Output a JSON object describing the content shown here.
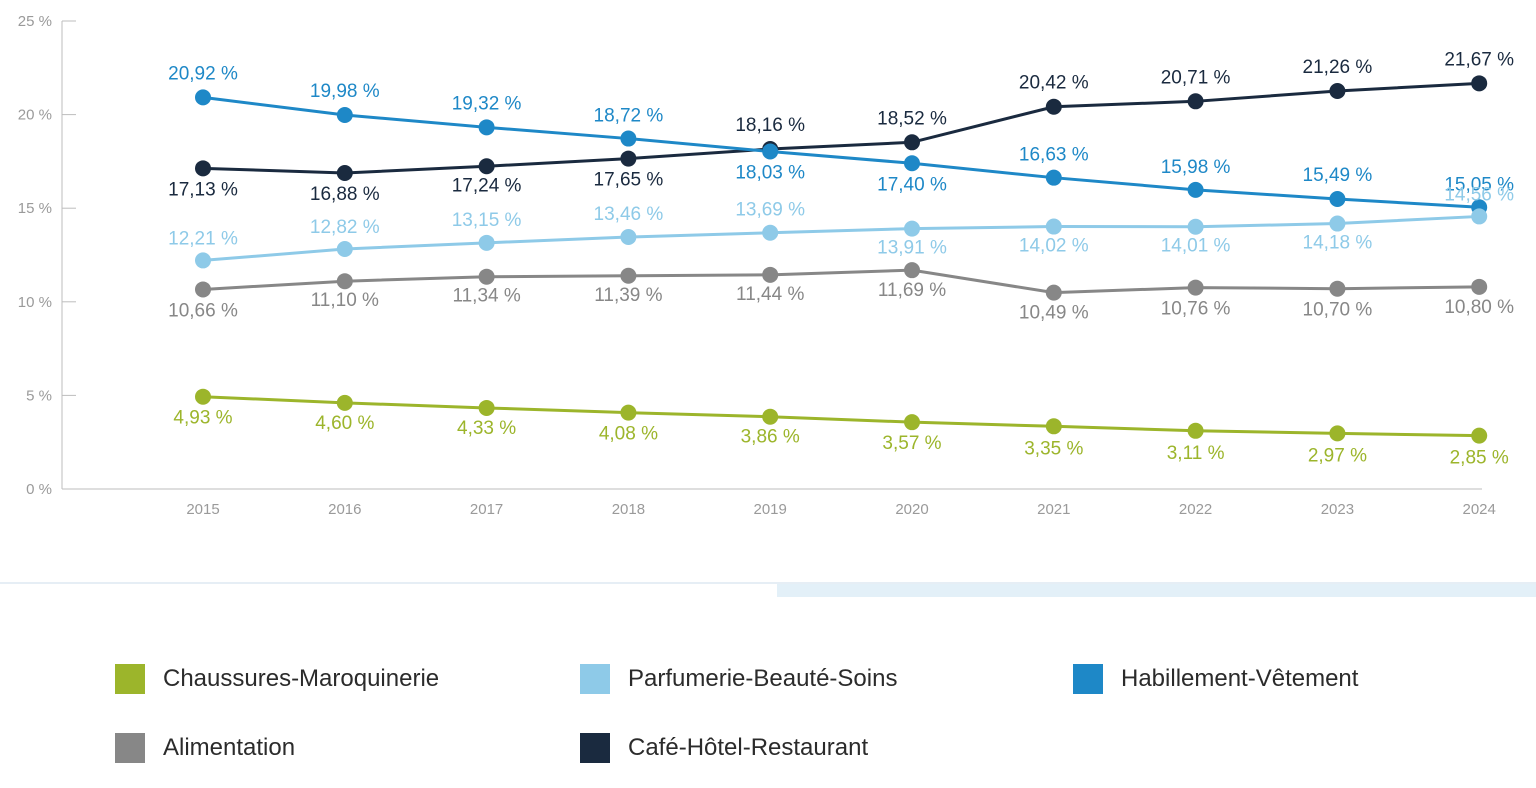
{
  "chart_data": {
    "type": "line",
    "title": "",
    "xlabel": "",
    "ylabel": "",
    "ylim": [
      0,
      25
    ],
    "yticks": [
      {
        "value": 0,
        "label": "0 %"
      },
      {
        "value": 5,
        "label": "5 %"
      },
      {
        "value": 10,
        "label": "10 %"
      },
      {
        "value": 15,
        "label": "15 %"
      },
      {
        "value": 20,
        "label": "20 %"
      },
      {
        "value": 25,
        "label": "25 %"
      }
    ],
    "grid": false,
    "legend_position": "bottom",
    "x": [
      "2015",
      "2016",
      "2017",
      "2018",
      "2019",
      "2020",
      "2021",
      "2022",
      "2023",
      "2024"
    ],
    "series": [
      {
        "key": "chr",
        "name": "Café-Hôtel-Restaurant",
        "color": "#1a2a3f",
        "values": [
          17.13,
          16.88,
          17.24,
          17.65,
          18.16,
          18.52,
          20.42,
          20.71,
          21.26,
          21.67
        ],
        "labels": [
          "17,13 %",
          "16,88 %",
          "17,24 %",
          "17,65 %",
          "18,16 %",
          "18,52 %",
          "20,42 %",
          "20,71 %",
          "21,26 %",
          "21,67 %"
        ]
      },
      {
        "key": "hab",
        "name": "Habillement-Vêtement",
        "color": "#1e88c7",
        "values": [
          20.92,
          19.98,
          19.32,
          18.72,
          18.03,
          17.4,
          16.63,
          15.98,
          15.49,
          15.05
        ],
        "labels": [
          "20,92 %",
          "19,98 %",
          "19,32 %",
          "18,72 %",
          "18,03 %",
          "17,40 %",
          "16,63 %",
          "15,98 %",
          "15,49 %",
          "15,05 %"
        ]
      },
      {
        "key": "pbs",
        "name": "Parfumerie-Beauté-Soins",
        "color": "#8ecae8",
        "values": [
          12.21,
          12.82,
          13.15,
          13.46,
          13.69,
          13.91,
          14.02,
          14.01,
          14.18,
          14.56
        ],
        "labels": [
          "12,21 %",
          "12,82 %",
          "13,15 %",
          "13,46 %",
          "13,69 %",
          "13,91 %",
          "14,02 %",
          "14,01 %",
          "14,18 %",
          "14,56 %"
        ]
      },
      {
        "key": "ali",
        "name": "Alimentation",
        "color": "#878787",
        "values": [
          10.66,
          11.1,
          11.34,
          11.39,
          11.44,
          11.69,
          10.49,
          10.76,
          10.7,
          10.8
        ],
        "labels": [
          "10,66 %",
          "11,10 %",
          "11,34 %",
          "11,39 %",
          "11,44 %",
          "11,69 %",
          "10,49 %",
          "10,76 %",
          "10,70 %",
          "10,80 %"
        ]
      },
      {
        "key": "cm",
        "name": "Chaussures-Maroquinerie",
        "color": "#9cb52b",
        "values": [
          4.93,
          4.6,
          4.33,
          4.08,
          3.86,
          3.57,
          3.35,
          3.11,
          2.97,
          2.85
        ],
        "labels": [
          "4,93 %",
          "4,60 %",
          "4,33 %",
          "4,08 %",
          "3,86 %",
          "3,57 %",
          "3,35 %",
          "3,11 %",
          "2,97 %",
          "2,85 %"
        ]
      }
    ]
  },
  "legend": {
    "items": [
      {
        "label": "Chaussures-Maroquinerie",
        "color": "#9cb52b"
      },
      {
        "label": "Parfumerie-Beauté-Soins",
        "color": "#8ecae8"
      },
      {
        "label": "Habillement-Vêtement",
        "color": "#1e88c7"
      },
      {
        "label": "Alimentation",
        "color": "#878787"
      },
      {
        "label": "Café-Hôtel-Restaurant",
        "color": "#1a2a3f"
      }
    ]
  }
}
